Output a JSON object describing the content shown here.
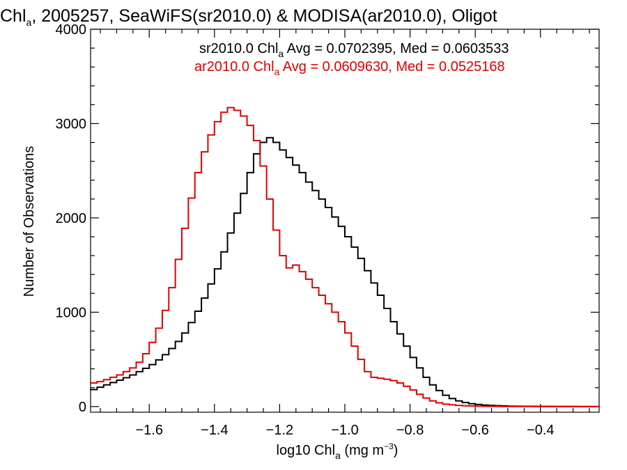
{
  "chart_data": {
    "type": "line",
    "title": "Chl_a, 2005257, SeaWiFS(sr2010.0) & MODISA(ar2010.0), Oligot",
    "title_parts": {
      "main": "Chl",
      "sub": "a",
      "rest": ", 2005257, SeaWiFS(sr2010.0) & MODISA(ar2010.0), Oligot"
    },
    "xlabel": "log10 Chl_a (mg m^-3)",
    "xlabel_parts": {
      "main": "log10 Chl",
      "sub": "a",
      "middle": " (mg m",
      "sup": "−3",
      "end": ")"
    },
    "ylabel": "Number of Observations",
    "xlim": [
      -1.78,
      -0.22
    ],
    "ylim": [
      -60,
      4000
    ],
    "x_ticks": [
      -1.6,
      -1.4,
      -1.2,
      -1.0,
      -0.8,
      -0.6,
      -0.4
    ],
    "x_tick_labels": [
      "−1.6",
      "−1.4",
      "−1.2",
      "−1.0",
      "−0.8",
      "−0.6",
      "−0.4"
    ],
    "y_ticks": [
      0,
      1000,
      2000,
      3000,
      4000
    ],
    "y_tick_labels": [
      "0",
      "1000",
      "2000",
      "3000",
      "4000"
    ],
    "grid": false,
    "legend": {
      "placement": "top-right",
      "entries": [
        {
          "prefix": "sr2010.0 Chl",
          "sub": "a",
          "suffix": " Avg = 0.0702395, Med = 0.0603533",
          "color": "#000000"
        },
        {
          "prefix": "ar2010.0 Chl",
          "sub": "a",
          "suffix": " Avg = 0.0609630, Med = 0.0525168",
          "color": "#e10000"
        }
      ]
    },
    "series": [
      {
        "name": "sr2010.0",
        "color": "#000000",
        "x": [
          -1.78,
          -1.76,
          -1.74,
          -1.72,
          -1.7,
          -1.68,
          -1.66,
          -1.64,
          -1.62,
          -1.6,
          -1.58,
          -1.56,
          -1.54,
          -1.52,
          -1.5,
          -1.48,
          -1.46,
          -1.44,
          -1.42,
          -1.4,
          -1.38,
          -1.36,
          -1.34,
          -1.32,
          -1.3,
          -1.28,
          -1.26,
          -1.24,
          -1.22,
          -1.2,
          -1.18,
          -1.16,
          -1.14,
          -1.12,
          -1.1,
          -1.08,
          -1.06,
          -1.04,
          -1.02,
          -1.0,
          -0.98,
          -0.96,
          -0.94,
          -0.92,
          -0.9,
          -0.88,
          -0.86,
          -0.84,
          -0.82,
          -0.8,
          -0.78,
          -0.76,
          -0.74,
          -0.72,
          -0.7,
          -0.68,
          -0.66,
          -0.64,
          -0.62,
          -0.6,
          -0.58,
          -0.56,
          -0.54,
          -0.52,
          -0.5,
          -0.48,
          -0.46,
          -0.44,
          -0.42,
          -0.4,
          -0.38,
          -0.36,
          -0.34,
          -0.32,
          -0.3,
          -0.28,
          -0.26,
          -0.24,
          -0.22
        ],
        "values": [
          180,
          205,
          230,
          255,
          280,
          305,
          335,
          370,
          405,
          445,
          495,
          550,
          615,
          690,
          780,
          890,
          1010,
          1150,
          1300,
          1460,
          1640,
          1840,
          2050,
          2260,
          2480,
          2680,
          2800,
          2850,
          2800,
          2720,
          2640,
          2560,
          2480,
          2380,
          2290,
          2200,
          2110,
          2010,
          1910,
          1800,
          1690,
          1570,
          1440,
          1310,
          1180,
          1040,
          900,
          770,
          640,
          520,
          410,
          310,
          230,
          170,
          120,
          85,
          60,
          42,
          30,
          22,
          16,
          12,
          9,
          7,
          5,
          4,
          3,
          3,
          2,
          2,
          2,
          1,
          1,
          1,
          1,
          0,
          0,
          0,
          0
        ]
      },
      {
        "name": "ar2010.0",
        "color": "#e10000",
        "x": [
          -1.78,
          -1.76,
          -1.74,
          -1.72,
          -1.7,
          -1.68,
          -1.66,
          -1.64,
          -1.62,
          -1.6,
          -1.58,
          -1.56,
          -1.54,
          -1.52,
          -1.5,
          -1.48,
          -1.46,
          -1.44,
          -1.42,
          -1.4,
          -1.38,
          -1.36,
          -1.34,
          -1.32,
          -1.3,
          -1.28,
          -1.26,
          -1.24,
          -1.22,
          -1.2,
          -1.18,
          -1.16,
          -1.14,
          -1.12,
          -1.1,
          -1.08,
          -1.06,
          -1.04,
          -1.02,
          -1.0,
          -0.98,
          -0.96,
          -0.94,
          -0.92,
          -0.9,
          -0.88,
          -0.86,
          -0.84,
          -0.82,
          -0.8,
          -0.78,
          -0.76,
          -0.74,
          -0.72,
          -0.7,
          -0.68,
          -0.66,
          -0.64,
          -0.62,
          -0.6,
          -0.58,
          -0.56,
          -0.54,
          -0.52,
          -0.5,
          -0.48,
          -0.46,
          -0.44,
          -0.42,
          -0.4,
          -0.38,
          -0.36,
          -0.34,
          -0.32,
          -0.3,
          -0.28,
          -0.26,
          -0.24,
          -0.22
        ],
        "values": [
          250,
          265,
          285,
          310,
          335,
          370,
          410,
          470,
          560,
          680,
          830,
          1020,
          1260,
          1560,
          1890,
          2210,
          2480,
          2700,
          2880,
          3020,
          3120,
          3170,
          3140,
          3080,
          2980,
          2820,
          2550,
          2200,
          1870,
          1600,
          1470,
          1500,
          1430,
          1350,
          1260,
          1180,
          1090,
          1000,
          900,
          780,
          640,
          500,
          370,
          310,
          300,
          290,
          275,
          250,
          215,
          175,
          130,
          90,
          60,
          40,
          26,
          18,
          12,
          8,
          6,
          4,
          3,
          2,
          2,
          1,
          1,
          1,
          1,
          1,
          0,
          0,
          0,
          0,
          0,
          0,
          0,
          0,
          0,
          0,
          0
        ]
      }
    ]
  }
}
